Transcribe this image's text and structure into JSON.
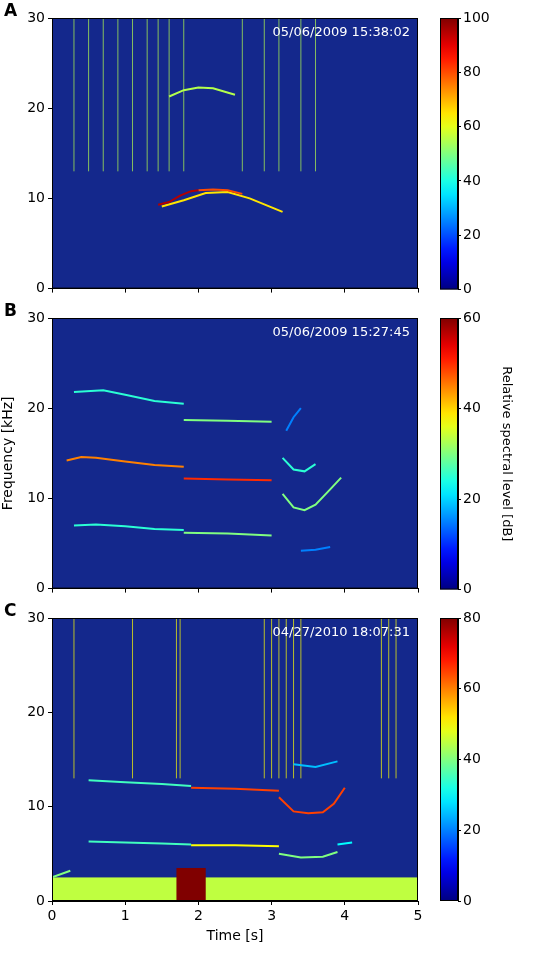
{
  "chart_data": [
    {
      "type": "spectrogram",
      "panel": "A",
      "annotation": "05/06/2009 15:38:02",
      "xlim": [
        0,
        5
      ],
      "xticks": [
        0,
        1,
        2,
        3,
        4,
        5
      ],
      "ylim": [
        0,
        30
      ],
      "yticks": [
        0,
        10,
        20,
        30
      ],
      "tick_labels": "y",
      "grid": false,
      "colorbar": {
        "range": [
          0,
          100
        ],
        "ticks": [
          0,
          20,
          40,
          60,
          80,
          100
        ]
      },
      "contours": [
        {
          "x": [
            1.45,
            1.6,
            1.75,
            1.9,
            2.0
          ],
          "y": [
            9.3,
            9.6,
            10.3,
            10.8,
            10.9
          ],
          "level": 95
        },
        {
          "x": [
            2.0,
            2.2,
            2.4,
            2.6
          ],
          "y": [
            10.9,
            11.0,
            10.9,
            10.5
          ],
          "level": 80
        },
        {
          "x": [
            1.5,
            1.8,
            2.1,
            2.4,
            2.7,
            3.0,
            3.15
          ],
          "y": [
            9.1,
            9.8,
            10.6,
            10.7,
            10.0,
            9.0,
            8.5
          ],
          "level": 65
        },
        {
          "x": [
            1.6,
            1.8,
            2.0,
            2.2,
            2.5
          ],
          "y": [
            21.3,
            22.0,
            22.3,
            22.2,
            21.5
          ],
          "level": 55
        }
      ],
      "clicks": {
        "x": [
          0.3,
          0.5,
          0.7,
          0.9,
          1.1,
          1.3,
          1.45,
          1.6,
          1.8,
          2.6,
          2.9,
          3.1,
          3.4,
          3.6
        ],
        "y": [
          13,
          30
        ],
        "level": 55
      }
    },
    {
      "type": "spectrogram",
      "panel": "B",
      "annotation": "05/06/2009 15:27:45",
      "ylabel": "Frequency [kHz]",
      "xlim": [
        0,
        5
      ],
      "xticks": [
        0,
        1,
        2,
        3,
        4,
        5
      ],
      "ylim": [
        0,
        30
      ],
      "yticks": [
        0,
        10,
        20,
        30
      ],
      "tick_labels": "y",
      "grid": false,
      "colorbar": {
        "label": "Relative spectral level [dB]",
        "range": [
          0,
          60
        ],
        "ticks": [
          0,
          20,
          40,
          60
        ]
      },
      "contours": [
        {
          "x": [
            0.2,
            0.4,
            0.6,
            1.0,
            1.4,
            1.8
          ],
          "y": [
            14.2,
            14.6,
            14.5,
            14.1,
            13.7,
            13.5
          ],
          "level": 45
        },
        {
          "x": [
            1.8,
            2.4,
            3.0
          ],
          "y": [
            12.2,
            12.1,
            12.0
          ],
          "level": 50
        },
        {
          "x": [
            3.15,
            3.3,
            3.45,
            3.6,
            3.8,
            3.95
          ],
          "y": [
            10.5,
            9.0,
            8.7,
            9.3,
            11.0,
            12.3
          ],
          "level": 30
        },
        {
          "x": [
            3.15,
            3.3,
            3.45,
            3.6
          ],
          "y": [
            14.5,
            13.2,
            13.0,
            13.8
          ],
          "level": 25
        },
        {
          "x": [
            0.3,
            0.7,
            1.0,
            1.4,
            1.8
          ],
          "y": [
            21.8,
            22.0,
            21.5,
            20.8,
            20.5
          ],
          "level": 25
        },
        {
          "x": [
            1.8,
            2.4,
            3.0
          ],
          "y": [
            18.7,
            18.6,
            18.5
          ],
          "level": 30
        },
        {
          "x": [
            3.2,
            3.3,
            3.4
          ],
          "y": [
            17.5,
            19.0,
            20.0
          ],
          "level": 15
        },
        {
          "x": [
            0.3,
            0.6,
            1.0,
            1.4,
            1.8
          ],
          "y": [
            7.0,
            7.1,
            6.9,
            6.6,
            6.5
          ],
          "level": 25
        },
        {
          "x": [
            1.8,
            2.4,
            3.0
          ],
          "y": [
            6.2,
            6.1,
            5.9
          ],
          "level": 30
        },
        {
          "x": [
            3.4,
            3.6,
            3.8
          ],
          "y": [
            4.2,
            4.3,
            4.6
          ],
          "level": 15
        }
      ]
    },
    {
      "type": "spectrogram",
      "panel": "C",
      "annotation": "04/27/2010 18:07:31",
      "xlabel": "Time [s]",
      "xlim": [
        0,
        5
      ],
      "xticks": [
        0,
        1,
        2,
        3,
        4,
        5
      ],
      "ylim": [
        0,
        30
      ],
      "yticks": [
        0,
        10,
        20,
        30
      ],
      "grid": false,
      "colorbar": {
        "range": [
          0,
          80
        ],
        "ticks": [
          0,
          20,
          40,
          60,
          80
        ]
      },
      "patches": [
        {
          "x": [
            0,
            5
          ],
          "y": [
            0,
            2.5
          ],
          "level": 45
        },
        {
          "x": [
            1.7,
            2.1
          ],
          "y": [
            0,
            3.5
          ],
          "level": 85
        }
      ],
      "contours": [
        {
          "x": [
            0.5,
            1.0,
            1.5,
            1.9
          ],
          "y": [
            12.8,
            12.6,
            12.4,
            12.2
          ],
          "level": 35
        },
        {
          "x": [
            1.9,
            2.5,
            3.1
          ],
          "y": [
            12.0,
            11.9,
            11.7
          ],
          "level": 65
        },
        {
          "x": [
            3.1,
            3.3,
            3.5,
            3.7,
            3.85,
            4.0
          ],
          "y": [
            11.0,
            9.5,
            9.3,
            9.4,
            10.3,
            12.0
          ],
          "level": 65
        },
        {
          "x": [
            0.5,
            1.0,
            1.5,
            1.9
          ],
          "y": [
            6.3,
            6.2,
            6.1,
            6.0
          ],
          "level": 35
        },
        {
          "x": [
            1.9,
            2.5,
            3.1
          ],
          "y": [
            5.9,
            5.9,
            5.8
          ],
          "level": 50
        },
        {
          "x": [
            3.1,
            3.4,
            3.7,
            3.9
          ],
          "y": [
            5.0,
            4.6,
            4.7,
            5.2
          ],
          "level": 40
        },
        {
          "x": [
            3.9,
            4.1
          ],
          "y": [
            6.0,
            6.2
          ],
          "level": 30
        },
        {
          "x": [
            3.3,
            3.6,
            3.9
          ],
          "y": [
            14.5,
            14.2,
            14.8
          ],
          "level": 25
        },
        {
          "x": [
            0,
            0.25
          ],
          "y": [
            2.5,
            3.2
          ],
          "level": 40
        }
      ],
      "clicks": {
        "x": [
          0.3,
          1.1,
          1.7,
          1.75,
          2.9,
          3.0,
          3.1,
          3.2,
          3.3,
          3.4,
          4.5,
          4.6,
          4.7
        ],
        "y": [
          13,
          30
        ],
        "level": 50
      }
    }
  ]
}
